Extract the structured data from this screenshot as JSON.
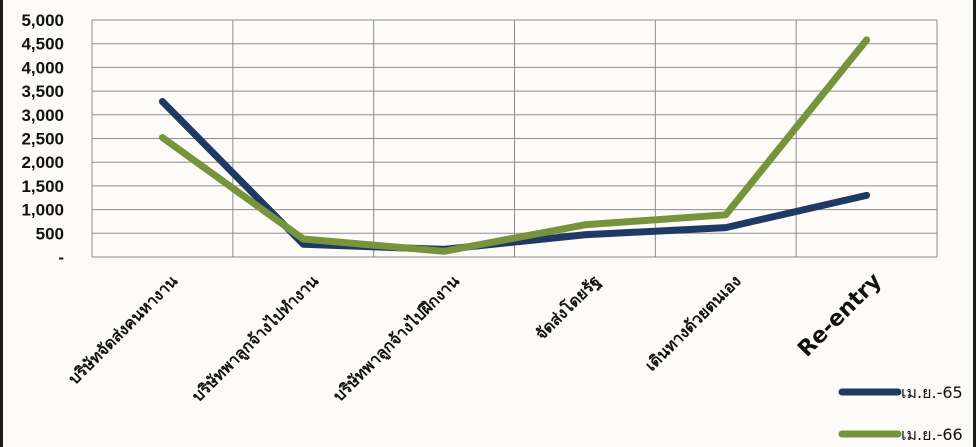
{
  "chart_data": {
    "type": "line",
    "categories": [
      "บริษัทจัดส่งคนหางาน",
      "บริษัทพาลูกจ้างไปทำงาน",
      "บริษัทพาลูกจ้างไปฝึกงาน",
      "จัดส่งโดยรัฐ",
      "เดินทางด้วยตนเอง",
      "Re-entry"
    ],
    "series": [
      {
        "name": "เม.ย.-65",
        "color": "#1f3864",
        "values": [
          3280,
          270,
          160,
          470,
          620,
          1300
        ]
      },
      {
        "name": "เม.ย.-66",
        "color": "#77933c",
        "values": [
          2520,
          380,
          120,
          680,
          890,
          4580
        ]
      }
    ],
    "yticks": [
      "-",
      "500",
      "1,000",
      "1,500",
      "2,000",
      "2,500",
      "3,000",
      "3,500",
      "4,000",
      "4,500",
      "5,000"
    ],
    "ylim": [
      0,
      5000
    ],
    "grid": true,
    "legend": "bottom-right"
  }
}
